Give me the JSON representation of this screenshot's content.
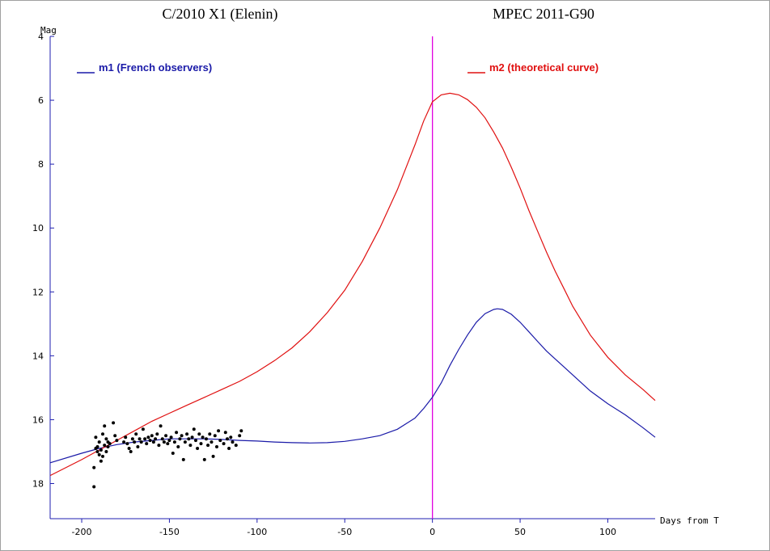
{
  "chart_data": {
    "type": "line",
    "title_left": "C/2010 X1 (Elenin)",
    "title_right": "MPEC 2011-G90",
    "xlabel": "Days from T",
    "ylabel": "Mag",
    "xlim": [
      -218,
      127
    ],
    "ylim": [
      19.1,
      4
    ],
    "y_inverted": true,
    "grid": false,
    "x_ticks": [
      -200,
      -150,
      -100,
      -50,
      0,
      50,
      100
    ],
    "x_tick_labels": [
      "-200",
      "-150",
      "-100",
      "-50",
      "0",
      "50",
      "100"
    ],
    "y_ticks": [
      4,
      6,
      8,
      10,
      12,
      14,
      16,
      18
    ],
    "y_tick_labels": [
      "4",
      "6",
      "8",
      "10",
      "12",
      "14",
      "16",
      "18"
    ],
    "vline": {
      "x": 0,
      "color": "#e000e0"
    },
    "series": [
      {
        "name": "m1 (French observers)",
        "legend_label": "m1 (French observers)",
        "color": "#1a1aa8",
        "x": [
          -218,
          -200,
          -190,
          -180,
          -170,
          -160,
          -150,
          -140,
          -130,
          -120,
          -110,
          -100,
          -90,
          -80,
          -70,
          -60,
          -50,
          -40,
          -30,
          -20,
          -10,
          -5,
          0,
          5,
          10,
          15,
          20,
          25,
          30,
          35,
          37,
          40,
          45,
          50,
          55,
          60,
          65,
          70,
          75,
          80,
          90,
          100,
          110,
          120,
          127
        ],
        "y": [
          17.35,
          17.05,
          16.9,
          16.78,
          16.7,
          16.65,
          16.6,
          16.6,
          16.6,
          16.62,
          16.65,
          16.67,
          16.7,
          16.72,
          16.73,
          16.72,
          16.68,
          16.6,
          16.5,
          16.3,
          15.95,
          15.65,
          15.3,
          14.85,
          14.3,
          13.8,
          13.35,
          12.95,
          12.68,
          12.55,
          12.53,
          12.55,
          12.7,
          12.95,
          13.25,
          13.55,
          13.85,
          14.1,
          14.35,
          14.6,
          15.1,
          15.5,
          15.85,
          16.25,
          16.55
        ]
      },
      {
        "name": "m2 (theoretical curve)",
        "legend_label": "m2 (theoretical curve)",
        "color": "#e01010",
        "x": [
          -218,
          -200,
          -190,
          -180,
          -170,
          -160,
          -150,
          -140,
          -130,
          -120,
          -110,
          -100,
          -90,
          -80,
          -70,
          -60,
          -50,
          -40,
          -30,
          -20,
          -10,
          -5,
          0,
          5,
          10,
          15,
          20,
          25,
          30,
          35,
          40,
          45,
          50,
          55,
          60,
          65,
          70,
          75,
          80,
          90,
          100,
          110,
          120,
          127
        ],
        "y": [
          17.75,
          17.25,
          16.95,
          16.65,
          16.35,
          16.05,
          15.8,
          15.55,
          15.3,
          15.05,
          14.8,
          14.5,
          14.15,
          13.75,
          13.25,
          12.65,
          11.95,
          11.05,
          10.0,
          8.8,
          7.4,
          6.65,
          6.05,
          5.83,
          5.78,
          5.83,
          5.98,
          6.22,
          6.55,
          7.0,
          7.5,
          8.1,
          8.75,
          9.45,
          10.1,
          10.75,
          11.35,
          11.9,
          12.45,
          13.35,
          14.05,
          14.6,
          15.05,
          15.4
        ]
      }
    ],
    "observations": {
      "marker": "dot",
      "color": "#000000",
      "x": [
        -193,
        -193,
        -192,
        -192,
        -191,
        -191,
        -190,
        -190,
        -189,
        -189,
        -188,
        -188,
        -187,
        -187,
        -186,
        -186,
        -185,
        -185,
        -184,
        -182,
        -181,
        -180,
        -176,
        -175,
        -174,
        -173,
        -172,
        -171,
        -170,
        -169,
        -168,
        -167,
        -166,
        -165,
        -164,
        -163,
        -162,
        -161,
        -160,
        -159,
        -158,
        -157,
        -156,
        -155,
        -154,
        -153,
        -152,
        -151,
        -150,
        -149,
        -148,
        -147,
        -146,
        -145,
        -144,
        -143,
        -142,
        -141,
        -140,
        -139,
        -138,
        -137,
        -136,
        -135,
        -134,
        -133,
        -132,
        -131,
        -130,
        -129,
        -128,
        -127,
        -126,
        -125,
        -124,
        -123,
        -122,
        -121,
        -119,
        -118,
        -117,
        -116,
        -115,
        -114,
        -112,
        -110,
        -109
      ],
      "y": [
        18.1,
        17.5,
        16.9,
        16.55,
        17.0,
        16.85,
        17.1,
        16.7,
        16.95,
        17.3,
        16.45,
        17.15,
        16.8,
        16.2,
        17.0,
        16.6,
        16.85,
        16.7,
        16.75,
        16.1,
        16.5,
        16.65,
        16.7,
        16.55,
        16.75,
        16.9,
        17.0,
        16.6,
        16.7,
        16.45,
        16.85,
        16.6,
        16.7,
        16.3,
        16.6,
        16.75,
        16.55,
        16.65,
        16.5,
        16.7,
        16.6,
        16.45,
        16.8,
        16.2,
        16.6,
        16.7,
        16.5,
        16.75,
        16.65,
        16.55,
        17.05,
        16.7,
        16.4,
        16.85,
        16.6,
        16.5,
        17.25,
        16.7,
        16.45,
        16.6,
        16.8,
        16.55,
        16.3,
        16.65,
        16.9,
        16.45,
        16.75,
        16.55,
        17.25,
        16.6,
        16.8,
        16.45,
        16.7,
        17.15,
        16.5,
        16.85,
        16.35,
        16.65,
        16.75,
        16.4,
        16.6,
        16.9,
        16.55,
        16.7,
        16.8,
        16.5,
        16.35
      ]
    }
  }
}
